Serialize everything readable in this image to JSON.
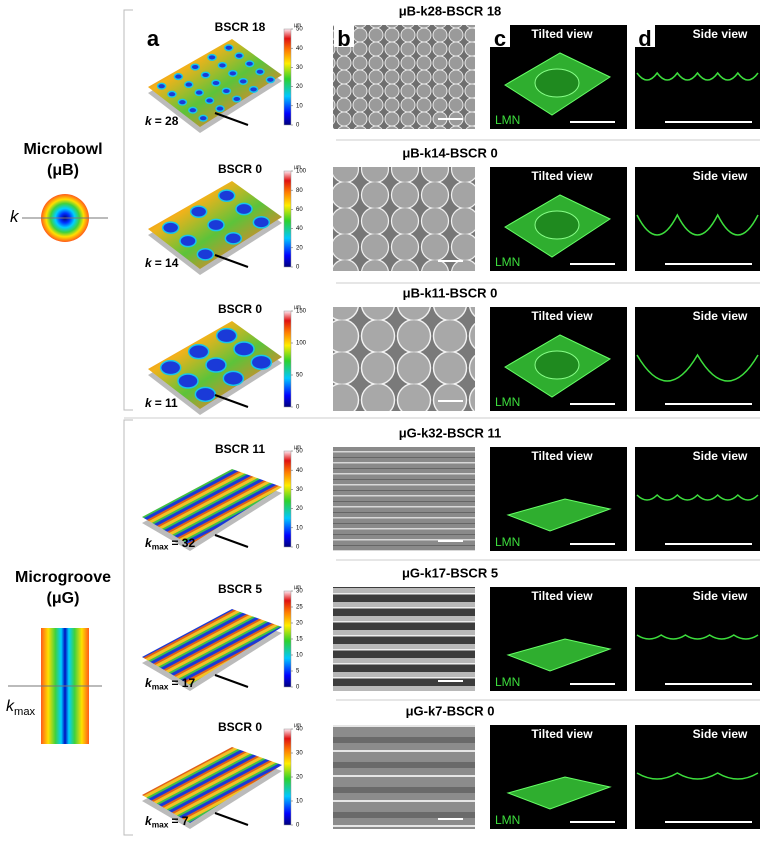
{
  "panel_labels": [
    "a",
    "b",
    "c",
    "d"
  ],
  "groups": [
    {
      "name": "Microbowl",
      "abbr": "(μB)",
      "symbol": {
        "var": "k"
      },
      "rows": [
        {
          "title": "μB-k28-BSCR 18",
          "map_label": "BSCR 18",
          "colorbar": {
            "unit": "µm",
            "ticks": [
              0,
              10,
              20,
              30,
              40,
              50
            ]
          },
          "k_label": {
            "var": "k",
            "value": "= 28"
          },
          "lmn": "LMN",
          "tilted": "Tilted view",
          "side": "Side view"
        },
        {
          "title": "μB-k14-BSCR 0",
          "map_label": "BSCR 0",
          "colorbar": {
            "unit": "µm",
            "ticks": [
              0,
              20,
              40,
              60,
              80,
              100
            ]
          },
          "k_label": {
            "var": "k",
            "value": "= 14"
          },
          "lmn": "LMN",
          "tilted": "Tilted view",
          "side": "Side view"
        },
        {
          "title": "μB-k11-BSCR 0",
          "map_label": "BSCR 0",
          "colorbar": {
            "unit": "µm",
            "ticks": [
              0,
              50,
              100,
              150
            ]
          },
          "k_label": {
            "var": "k",
            "value": "= 11"
          },
          "lmn": "LMN",
          "tilted": "Tilted view",
          "side": "Side view"
        }
      ]
    },
    {
      "name": "Microgroove",
      "abbr": "(μG)",
      "symbol": {
        "var": "k",
        "sub": "max"
      },
      "rows": [
        {
          "title": "μG-k32-BSCR 11",
          "map_label": "BSCR 11",
          "colorbar": {
            "unit": "µm",
            "ticks": [
              0,
              10,
              20,
              30,
              40,
              50
            ]
          },
          "k_label": {
            "var": "k",
            "sub": "max",
            "value": "= 32"
          },
          "lmn": "LMN",
          "tilted": "Tilted view",
          "side": "Side view"
        },
        {
          "title": "μG-k17-BSCR 5",
          "map_label": "BSCR 5",
          "colorbar": {
            "unit": "µm",
            "ticks": [
              0,
              5,
              10,
              15,
              20,
              25,
              30
            ]
          },
          "k_label": {
            "var": "k",
            "sub": "max",
            "value": "= 17"
          },
          "lmn": "LMN",
          "tilted": "Tilted view",
          "side": "Side view"
        },
        {
          "title": "μG-k7-BSCR 0",
          "map_label": "BSCR 0",
          "colorbar": {
            "unit": "µm",
            "ticks": [
              0,
              10,
              20,
              30,
              40
            ]
          },
          "k_label": {
            "var": "k",
            "sub": "max",
            "value": "= 7"
          },
          "lmn": "LMN",
          "tilted": "Tilted view",
          "side": "Side view"
        }
      ]
    }
  ]
}
